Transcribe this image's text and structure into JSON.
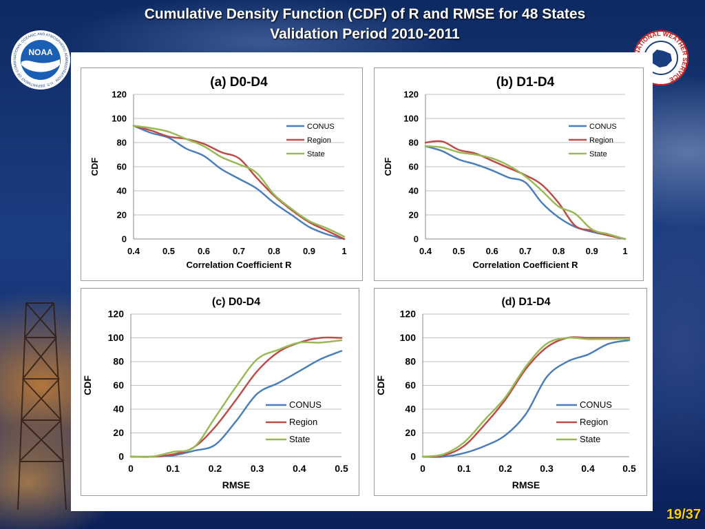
{
  "slide": {
    "title_line1": "Cumulative Density Function (CDF) of R and RMSE for 48 States",
    "title_line2": "Validation Period 2010-2011",
    "page_number": "19/37",
    "noaa_logo_text": "NOAA",
    "noaa_ring_text": "NATIONAL OCEANIC AND ATMOSPHERIC ADMINISTRATION · U.S. DEPARTMENT OF COMMERCE",
    "nws_ring_text": "NATIONAL WEATHER SERVICE"
  },
  "colors": {
    "background": "#1b3d82",
    "title_text": "#ffffff",
    "page_number": "#ffd000",
    "conus": "#4a7ebb",
    "region": "#be4b48",
    "state": "#98b954"
  },
  "chart_data": [
    {
      "type": "line",
      "title": "(a) D0-D4",
      "xlabel": "Correlation Coefficient R",
      "ylabel": "CDF",
      "xlim": [
        0.4,
        1.0
      ],
      "ylim": [
        0,
        120
      ],
      "xticks": [
        0.4,
        0.5,
        0.6,
        0.7,
        0.8,
        0.9,
        1
      ],
      "xtick_labels": [
        "0.4",
        "0.5",
        "0.6",
        "0.7",
        "0.8",
        "0.9",
        "1"
      ],
      "yticks": [
        0,
        20,
        40,
        60,
        80,
        100,
        120
      ],
      "grid": "horizontal",
      "legend_position": "top-right",
      "series": [
        {
          "name": "CONUS",
          "color": "#4a7ebb",
          "x": [
            0.4,
            0.45,
            0.5,
            0.55,
            0.6,
            0.65,
            0.7,
            0.75,
            0.8,
            0.85,
            0.9,
            0.95,
            1.0
          ],
          "y": [
            94,
            88,
            84,
            75,
            69,
            58,
            50,
            42,
            30,
            20,
            10,
            4,
            0
          ]
        },
        {
          "name": "Region",
          "color": "#be4b48",
          "x": [
            0.4,
            0.45,
            0.5,
            0.55,
            0.6,
            0.65,
            0.7,
            0.75,
            0.8,
            0.85,
            0.9,
            0.95,
            1.0
          ],
          "y": [
            94,
            90,
            85,
            83,
            79,
            72,
            67,
            51,
            36,
            24,
            14,
            7,
            0
          ]
        },
        {
          "name": "State",
          "color": "#98b954",
          "x": [
            0.4,
            0.45,
            0.5,
            0.55,
            0.6,
            0.65,
            0.7,
            0.75,
            0.8,
            0.85,
            0.9,
            0.95,
            1.0
          ],
          "y": [
            94,
            92,
            89,
            83,
            77,
            68,
            62,
            55,
            37,
            25,
            15,
            9,
            2
          ]
        }
      ]
    },
    {
      "type": "line",
      "title": "(b) D1-D4",
      "xlabel": "Correlation Coefficient R",
      "ylabel": "CDF",
      "xlim": [
        0.4,
        1.0
      ],
      "ylim": [
        0,
        120
      ],
      "xticks": [
        0.4,
        0.5,
        0.6,
        0.7,
        0.8,
        0.9,
        1
      ],
      "xtick_labels": [
        "0.4",
        "0.5",
        "0.6",
        "0.7",
        "0.8",
        "0.9",
        "1"
      ],
      "yticks": [
        0,
        20,
        40,
        60,
        80,
        100,
        120
      ],
      "grid": "horizontal",
      "legend_position": "top-right",
      "series": [
        {
          "name": "CONUS",
          "color": "#4a7ebb",
          "x": [
            0.4,
            0.45,
            0.5,
            0.55,
            0.6,
            0.65,
            0.7,
            0.75,
            0.8,
            0.85,
            0.9,
            0.95,
            1.0
          ],
          "y": [
            77,
            73,
            66,
            62,
            57,
            51,
            47,
            30,
            18,
            10,
            6,
            3,
            0
          ]
        },
        {
          "name": "Region",
          "color": "#be4b48",
          "x": [
            0.4,
            0.45,
            0.5,
            0.55,
            0.6,
            0.65,
            0.7,
            0.75,
            0.8,
            0.85,
            0.9,
            0.95,
            1.0
          ],
          "y": [
            80,
            81,
            74,
            71,
            65,
            59,
            53,
            45,
            30,
            11,
            7,
            3,
            0
          ]
        },
        {
          "name": "State",
          "color": "#98b954",
          "x": [
            0.4,
            0.45,
            0.5,
            0.55,
            0.6,
            0.65,
            0.7,
            0.75,
            0.8,
            0.85,
            0.9,
            0.95,
            1.0
          ],
          "y": [
            77,
            76,
            72,
            70,
            67,
            61,
            52,
            40,
            27,
            21,
            8,
            4,
            0
          ]
        }
      ]
    },
    {
      "type": "line",
      "title": "(c) D0-D4",
      "xlabel": "RMSE",
      "ylabel": "CDF",
      "xlim": [
        0,
        0.5
      ],
      "ylim": [
        0,
        120
      ],
      "xticks": [
        0,
        0.1,
        0.2,
        0.3,
        0.4,
        0.5
      ],
      "xtick_labels": [
        "0",
        "0.1",
        "0.2",
        "0.3",
        "0.4",
        "0.5"
      ],
      "yticks": [
        0,
        20,
        40,
        60,
        80,
        100,
        120
      ],
      "grid": "horizontal",
      "legend_position": "bottom-right",
      "series": [
        {
          "name": "CONUS",
          "color": "#4a7ebb",
          "x": [
            0,
            0.05,
            0.1,
            0.15,
            0.2,
            0.25,
            0.3,
            0.35,
            0.4,
            0.45,
            0.5
          ],
          "y": [
            0,
            0,
            1,
            5,
            10,
            30,
            53,
            62,
            72,
            82,
            89
          ]
        },
        {
          "name": "Region",
          "color": "#be4b48",
          "x": [
            0,
            0.05,
            0.1,
            0.15,
            0.2,
            0.25,
            0.3,
            0.35,
            0.4,
            0.45,
            0.5
          ],
          "y": [
            0,
            0,
            2,
            8,
            25,
            48,
            72,
            88,
            96,
            100,
            100
          ]
        },
        {
          "name": "State",
          "color": "#98b954",
          "x": [
            0,
            0.05,
            0.1,
            0.15,
            0.2,
            0.25,
            0.3,
            0.35,
            0.4,
            0.45,
            0.5
          ],
          "y": [
            0,
            0,
            4,
            8,
            33,
            59,
            82,
            90,
            96,
            96,
            98
          ]
        }
      ]
    },
    {
      "type": "line",
      "title": "(d) D1-D4",
      "xlabel": "RMSE",
      "ylabel": "CDF",
      "xlim": [
        0,
        0.5
      ],
      "ylim": [
        0,
        120
      ],
      "xticks": [
        0,
        0.1,
        0.2,
        0.3,
        0.4,
        0.5
      ],
      "xtick_labels": [
        "0",
        "0.1",
        "0.2",
        "0.3",
        "0.4",
        "0.5"
      ],
      "yticks": [
        0,
        20,
        40,
        60,
        80,
        100,
        120
      ],
      "grid": "horizontal",
      "legend_position": "bottom-right",
      "series": [
        {
          "name": "CONUS",
          "color": "#4a7ebb",
          "x": [
            0,
            0.05,
            0.1,
            0.15,
            0.2,
            0.25,
            0.3,
            0.35,
            0.4,
            0.45,
            0.5
          ],
          "y": [
            0,
            0,
            3,
            9,
            18,
            36,
            67,
            80,
            86,
            95,
            98
          ]
        },
        {
          "name": "Region",
          "color": "#be4b48",
          "x": [
            0,
            0.05,
            0.1,
            0.15,
            0.2,
            0.25,
            0.3,
            0.35,
            0.4,
            0.45,
            0.5
          ],
          "y": [
            0,
            1,
            9,
            27,
            48,
            74,
            92,
            100,
            100,
            100,
            100
          ]
        },
        {
          "name": "State",
          "color": "#98b954",
          "x": [
            0,
            0.05,
            0.1,
            0.15,
            0.2,
            0.25,
            0.3,
            0.35,
            0.4,
            0.45,
            0.5
          ],
          "y": [
            0,
            2,
            12,
            31,
            50,
            76,
            95,
            100,
            99,
            99,
            99
          ]
        }
      ]
    }
  ]
}
